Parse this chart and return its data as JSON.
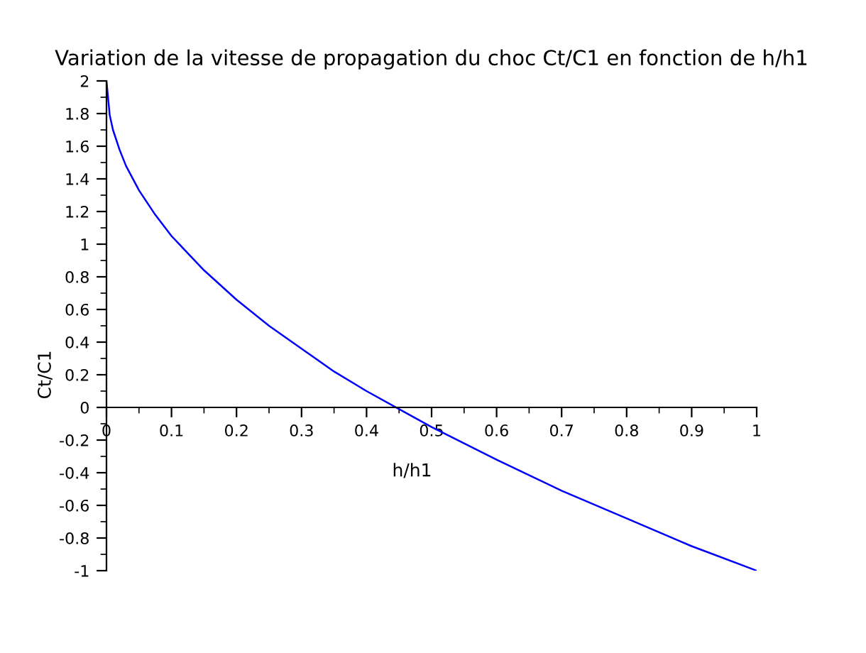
{
  "chart_data": {
    "type": "line",
    "title": "Variation de la vitesse de propagation du choc Ct/C1 en fonction de h/h1",
    "xlabel": "h/h1",
    "ylabel": "Ct/C1",
    "x": [
      0,
      0.005,
      0.01,
      0.02,
      0.03,
      0.05,
      0.075,
      0.1,
      0.15,
      0.2,
      0.25,
      0.3,
      0.35,
      0.4,
      0.45,
      0.5,
      0.6,
      0.7,
      0.8,
      0.9,
      1
    ],
    "series": [
      {
        "color": "#0000ff",
        "values": [
          2,
          1.79,
          1.7,
          1.58,
          1.48,
          1.33,
          1.18,
          1.05,
          0.84,
          0.66,
          0.5,
          0.36,
          0.22,
          0.1,
          -0.01,
          -0.12,
          -0.32,
          -0.51,
          -0.68,
          -0.85,
          -1
        ]
      }
    ],
    "xlim": [
      0,
      1
    ],
    "ylim": [
      -1,
      2
    ],
    "xticks": [
      0,
      0.1,
      0.2,
      0.3,
      0.4,
      0.5,
      0.6,
      0.7,
      0.8,
      0.9,
      1
    ],
    "yticks": [
      -1,
      -0.8,
      -0.6,
      -0.4,
      -0.2,
      0,
      0.2,
      0.4,
      0.6,
      0.8,
      1,
      1.2,
      1.4,
      1.6,
      1.8,
      2
    ],
    "grid": false,
    "legend": false,
    "marker": "none",
    "line_style": "solid"
  }
}
